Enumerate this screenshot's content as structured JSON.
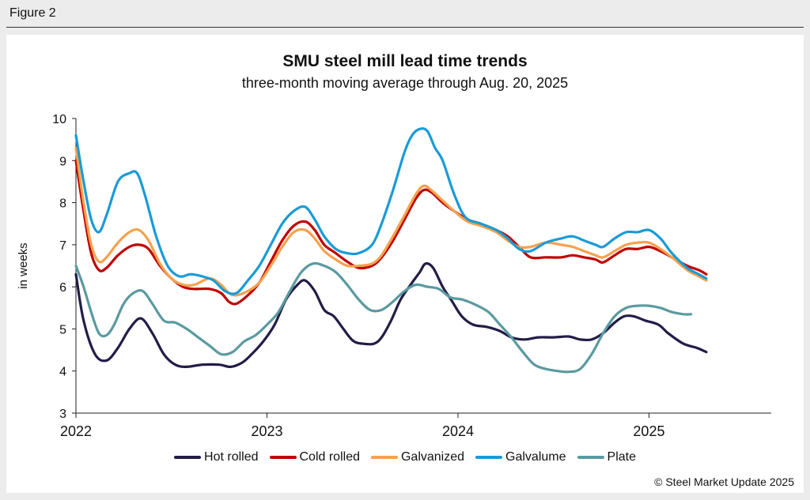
{
  "figure_label": "Figure 2",
  "copyright": "© Steel Market Update 2025",
  "chart_data": {
    "type": "line",
    "title": "SMU steel mill lead time trends",
    "subtitle": "three-month moving average through Aug. 20, 2025",
    "ylabel": "in weeks",
    "ylim": [
      3,
      10
    ],
    "yticks": [
      3,
      4,
      5,
      6,
      7,
      8,
      9,
      10
    ],
    "xlim": [
      2022.0,
      2025.64
    ],
    "xticks": [
      2022,
      2023,
      2024,
      2025
    ],
    "grid": false,
    "legend_position": "bottom",
    "series": [
      {
        "name": "Hot rolled",
        "color": "#221d47",
        "points": [
          [
            2022.0,
            6.3
          ],
          [
            2022.04,
            5.2
          ],
          [
            2022.1,
            4.4
          ],
          [
            2022.16,
            4.25
          ],
          [
            2022.22,
            4.55
          ],
          [
            2022.28,
            5.0
          ],
          [
            2022.34,
            5.25
          ],
          [
            2022.4,
            4.9
          ],
          [
            2022.46,
            4.4
          ],
          [
            2022.52,
            4.15
          ],
          [
            2022.58,
            4.1
          ],
          [
            2022.66,
            4.15
          ],
          [
            2022.75,
            4.15
          ],
          [
            2022.81,
            4.1
          ],
          [
            2022.87,
            4.2
          ],
          [
            2022.92,
            4.4
          ],
          [
            2022.98,
            4.7
          ],
          [
            2023.04,
            5.1
          ],
          [
            2023.1,
            5.7
          ],
          [
            2023.16,
            6.05
          ],
          [
            2023.2,
            6.15
          ],
          [
            2023.25,
            5.9
          ],
          [
            2023.3,
            5.45
          ],
          [
            2023.35,
            5.3
          ],
          [
            2023.4,
            5.0
          ],
          [
            2023.45,
            4.72
          ],
          [
            2023.5,
            4.65
          ],
          [
            2023.56,
            4.65
          ],
          [
            2023.6,
            4.8
          ],
          [
            2023.65,
            5.2
          ],
          [
            2023.7,
            5.7
          ],
          [
            2023.76,
            6.1
          ],
          [
            2023.8,
            6.35
          ],
          [
            2023.83,
            6.55
          ],
          [
            2023.87,
            6.45
          ],
          [
            2023.92,
            6.0
          ],
          [
            2023.97,
            5.65
          ],
          [
            2024.02,
            5.3
          ],
          [
            2024.08,
            5.1
          ],
          [
            2024.15,
            5.05
          ],
          [
            2024.22,
            4.95
          ],
          [
            2024.28,
            4.8
          ],
          [
            2024.35,
            4.75
          ],
          [
            2024.42,
            4.8
          ],
          [
            2024.5,
            4.8
          ],
          [
            2024.58,
            4.82
          ],
          [
            2024.64,
            4.75
          ],
          [
            2024.7,
            4.75
          ],
          [
            2024.76,
            4.9
          ],
          [
            2024.82,
            5.15
          ],
          [
            2024.87,
            5.3
          ],
          [
            2024.92,
            5.3
          ],
          [
            2024.98,
            5.2
          ],
          [
            2025.05,
            5.1
          ],
          [
            2025.1,
            4.9
          ],
          [
            2025.18,
            4.65
          ],
          [
            2025.25,
            4.55
          ],
          [
            2025.3,
            4.45
          ]
        ]
      },
      {
        "name": "Cold rolled",
        "color": "#c00000",
        "points": [
          [
            2022.0,
            9.0
          ],
          [
            2022.04,
            7.8
          ],
          [
            2022.08,
            6.8
          ],
          [
            2022.12,
            6.4
          ],
          [
            2022.16,
            6.45
          ],
          [
            2022.22,
            6.75
          ],
          [
            2022.28,
            6.95
          ],
          [
            2022.33,
            7.0
          ],
          [
            2022.38,
            6.9
          ],
          [
            2022.44,
            6.5
          ],
          [
            2022.5,
            6.2
          ],
          [
            2022.56,
            6.0
          ],
          [
            2022.62,
            5.95
          ],
          [
            2022.7,
            5.95
          ],
          [
            2022.76,
            5.85
          ],
          [
            2022.8,
            5.65
          ],
          [
            2022.84,
            5.6
          ],
          [
            2022.9,
            5.8
          ],
          [
            2022.96,
            6.1
          ],
          [
            2023.02,
            6.6
          ],
          [
            2023.08,
            7.1
          ],
          [
            2023.14,
            7.45
          ],
          [
            2023.2,
            7.55
          ],
          [
            2023.25,
            7.35
          ],
          [
            2023.3,
            7.0
          ],
          [
            2023.36,
            6.8
          ],
          [
            2023.42,
            6.6
          ],
          [
            2023.48,
            6.45
          ],
          [
            2023.55,
            6.5
          ],
          [
            2023.6,
            6.7
          ],
          [
            2023.66,
            7.1
          ],
          [
            2023.72,
            7.6
          ],
          [
            2023.78,
            8.1
          ],
          [
            2023.82,
            8.3
          ],
          [
            2023.86,
            8.25
          ],
          [
            2023.92,
            8.0
          ],
          [
            2023.98,
            7.8
          ],
          [
            2024.05,
            7.6
          ],
          [
            2024.12,
            7.5
          ],
          [
            2024.2,
            7.35
          ],
          [
            2024.26,
            7.2
          ],
          [
            2024.32,
            6.95
          ],
          [
            2024.38,
            6.7
          ],
          [
            2024.46,
            6.7
          ],
          [
            2024.54,
            6.7
          ],
          [
            2024.6,
            6.75
          ],
          [
            2024.66,
            6.7
          ],
          [
            2024.72,
            6.65
          ],
          [
            2024.76,
            6.58
          ],
          [
            2024.82,
            6.75
          ],
          [
            2024.88,
            6.9
          ],
          [
            2024.94,
            6.9
          ],
          [
            2025.0,
            6.95
          ],
          [
            2025.06,
            6.85
          ],
          [
            2025.12,
            6.7
          ],
          [
            2025.2,
            6.5
          ],
          [
            2025.26,
            6.4
          ],
          [
            2025.3,
            6.3
          ]
        ]
      },
      {
        "name": "Galvanized",
        "color": "#f4a24e",
        "points": [
          [
            2022.0,
            9.3
          ],
          [
            2022.04,
            8.0
          ],
          [
            2022.08,
            7.0
          ],
          [
            2022.12,
            6.6
          ],
          [
            2022.16,
            6.7
          ],
          [
            2022.22,
            7.05
          ],
          [
            2022.28,
            7.3
          ],
          [
            2022.33,
            7.35
          ],
          [
            2022.38,
            7.1
          ],
          [
            2022.44,
            6.55
          ],
          [
            2022.5,
            6.2
          ],
          [
            2022.56,
            6.05
          ],
          [
            2022.62,
            6.05
          ],
          [
            2022.7,
            6.2
          ],
          [
            2022.76,
            6.05
          ],
          [
            2022.8,
            5.85
          ],
          [
            2022.84,
            5.8
          ],
          [
            2022.9,
            5.9
          ],
          [
            2022.96,
            6.1
          ],
          [
            2023.02,
            6.5
          ],
          [
            2023.08,
            6.95
          ],
          [
            2023.14,
            7.3
          ],
          [
            2023.2,
            7.35
          ],
          [
            2023.25,
            7.15
          ],
          [
            2023.3,
            6.85
          ],
          [
            2023.36,
            6.65
          ],
          [
            2023.42,
            6.5
          ],
          [
            2023.48,
            6.5
          ],
          [
            2023.55,
            6.55
          ],
          [
            2023.6,
            6.75
          ],
          [
            2023.66,
            7.2
          ],
          [
            2023.72,
            7.7
          ],
          [
            2023.78,
            8.2
          ],
          [
            2023.82,
            8.4
          ],
          [
            2023.86,
            8.3
          ],
          [
            2023.92,
            8.05
          ],
          [
            2023.98,
            7.8
          ],
          [
            2024.05,
            7.55
          ],
          [
            2024.12,
            7.45
          ],
          [
            2024.2,
            7.3
          ],
          [
            2024.26,
            7.1
          ],
          [
            2024.32,
            6.95
          ],
          [
            2024.38,
            6.95
          ],
          [
            2024.46,
            7.05
          ],
          [
            2024.54,
            7.0
          ],
          [
            2024.6,
            6.95
          ],
          [
            2024.66,
            6.85
          ],
          [
            2024.72,
            6.75
          ],
          [
            2024.76,
            6.7
          ],
          [
            2024.82,
            6.85
          ],
          [
            2024.88,
            7.0
          ],
          [
            2024.94,
            7.05
          ],
          [
            2025.0,
            7.05
          ],
          [
            2025.06,
            6.9
          ],
          [
            2025.12,
            6.7
          ],
          [
            2025.2,
            6.4
          ],
          [
            2025.26,
            6.25
          ],
          [
            2025.3,
            6.15
          ]
        ]
      },
      {
        "name": "Galvalume",
        "color": "#1a9bd7",
        "points": [
          [
            2022.0,
            9.6
          ],
          [
            2022.04,
            8.5
          ],
          [
            2022.08,
            7.6
          ],
          [
            2022.12,
            7.3
          ],
          [
            2022.16,
            7.7
          ],
          [
            2022.22,
            8.5
          ],
          [
            2022.28,
            8.7
          ],
          [
            2022.32,
            8.7
          ],
          [
            2022.36,
            8.2
          ],
          [
            2022.42,
            7.2
          ],
          [
            2022.48,
            6.5
          ],
          [
            2022.54,
            6.25
          ],
          [
            2022.6,
            6.3
          ],
          [
            2022.66,
            6.25
          ],
          [
            2022.72,
            6.15
          ],
          [
            2022.78,
            5.9
          ],
          [
            2022.84,
            5.85
          ],
          [
            2022.9,
            6.15
          ],
          [
            2022.96,
            6.5
          ],
          [
            2023.02,
            7.0
          ],
          [
            2023.08,
            7.5
          ],
          [
            2023.14,
            7.8
          ],
          [
            2023.2,
            7.9
          ],
          [
            2023.25,
            7.6
          ],
          [
            2023.3,
            7.2
          ],
          [
            2023.36,
            6.9
          ],
          [
            2023.42,
            6.8
          ],
          [
            2023.48,
            6.8
          ],
          [
            2023.55,
            7.0
          ],
          [
            2023.6,
            7.5
          ],
          [
            2023.66,
            8.3
          ],
          [
            2023.72,
            9.2
          ],
          [
            2023.76,
            9.6
          ],
          [
            2023.8,
            9.75
          ],
          [
            2023.84,
            9.7
          ],
          [
            2023.88,
            9.3
          ],
          [
            2023.92,
            9.0
          ],
          [
            2023.98,
            8.2
          ],
          [
            2024.04,
            7.65
          ],
          [
            2024.12,
            7.5
          ],
          [
            2024.2,
            7.35
          ],
          [
            2024.26,
            7.15
          ],
          [
            2024.32,
            6.9
          ],
          [
            2024.38,
            6.85
          ],
          [
            2024.46,
            7.05
          ],
          [
            2024.54,
            7.15
          ],
          [
            2024.6,
            7.2
          ],
          [
            2024.66,
            7.1
          ],
          [
            2024.72,
            7.0
          ],
          [
            2024.76,
            6.95
          ],
          [
            2024.82,
            7.15
          ],
          [
            2024.88,
            7.3
          ],
          [
            2024.94,
            7.3
          ],
          [
            2025.0,
            7.35
          ],
          [
            2025.06,
            7.15
          ],
          [
            2025.12,
            6.8
          ],
          [
            2025.2,
            6.45
          ],
          [
            2025.26,
            6.3
          ],
          [
            2025.3,
            6.2
          ]
        ]
      },
      {
        "name": "Plate",
        "color": "#5a9aa0",
        "points": [
          [
            2022.0,
            6.5
          ],
          [
            2022.04,
            6.0
          ],
          [
            2022.08,
            5.4
          ],
          [
            2022.12,
            4.9
          ],
          [
            2022.16,
            4.85
          ],
          [
            2022.2,
            5.1
          ],
          [
            2022.25,
            5.6
          ],
          [
            2022.3,
            5.85
          ],
          [
            2022.35,
            5.9
          ],
          [
            2022.4,
            5.6
          ],
          [
            2022.46,
            5.2
          ],
          [
            2022.52,
            5.15
          ],
          [
            2022.58,
            5.0
          ],
          [
            2022.64,
            4.8
          ],
          [
            2022.7,
            4.6
          ],
          [
            2022.76,
            4.4
          ],
          [
            2022.82,
            4.45
          ],
          [
            2022.88,
            4.7
          ],
          [
            2022.94,
            4.85
          ],
          [
            2023.0,
            5.1
          ],
          [
            2023.06,
            5.4
          ],
          [
            2023.12,
            5.9
          ],
          [
            2023.18,
            6.35
          ],
          [
            2023.24,
            6.55
          ],
          [
            2023.3,
            6.5
          ],
          [
            2023.36,
            6.35
          ],
          [
            2023.42,
            6.05
          ],
          [
            2023.48,
            5.7
          ],
          [
            2023.54,
            5.45
          ],
          [
            2023.6,
            5.45
          ],
          [
            2023.66,
            5.65
          ],
          [
            2023.72,
            5.9
          ],
          [
            2023.78,
            6.05
          ],
          [
            2023.84,
            6.0
          ],
          [
            2023.9,
            5.95
          ],
          [
            2023.96,
            5.75
          ],
          [
            2024.02,
            5.7
          ],
          [
            2024.08,
            5.6
          ],
          [
            2024.16,
            5.4
          ],
          [
            2024.22,
            5.1
          ],
          [
            2024.28,
            4.8
          ],
          [
            2024.34,
            4.45
          ],
          [
            2024.4,
            4.15
          ],
          [
            2024.46,
            4.05
          ],
          [
            2024.52,
            4.0
          ],
          [
            2024.58,
            3.98
          ],
          [
            2024.64,
            4.05
          ],
          [
            2024.7,
            4.4
          ],
          [
            2024.76,
            4.9
          ],
          [
            2024.82,
            5.3
          ],
          [
            2024.88,
            5.5
          ],
          [
            2024.94,
            5.55
          ],
          [
            2025.0,
            5.55
          ],
          [
            2025.06,
            5.5
          ],
          [
            2025.12,
            5.4
          ],
          [
            2025.18,
            5.35
          ],
          [
            2025.22,
            5.35
          ]
        ]
      }
    ]
  }
}
